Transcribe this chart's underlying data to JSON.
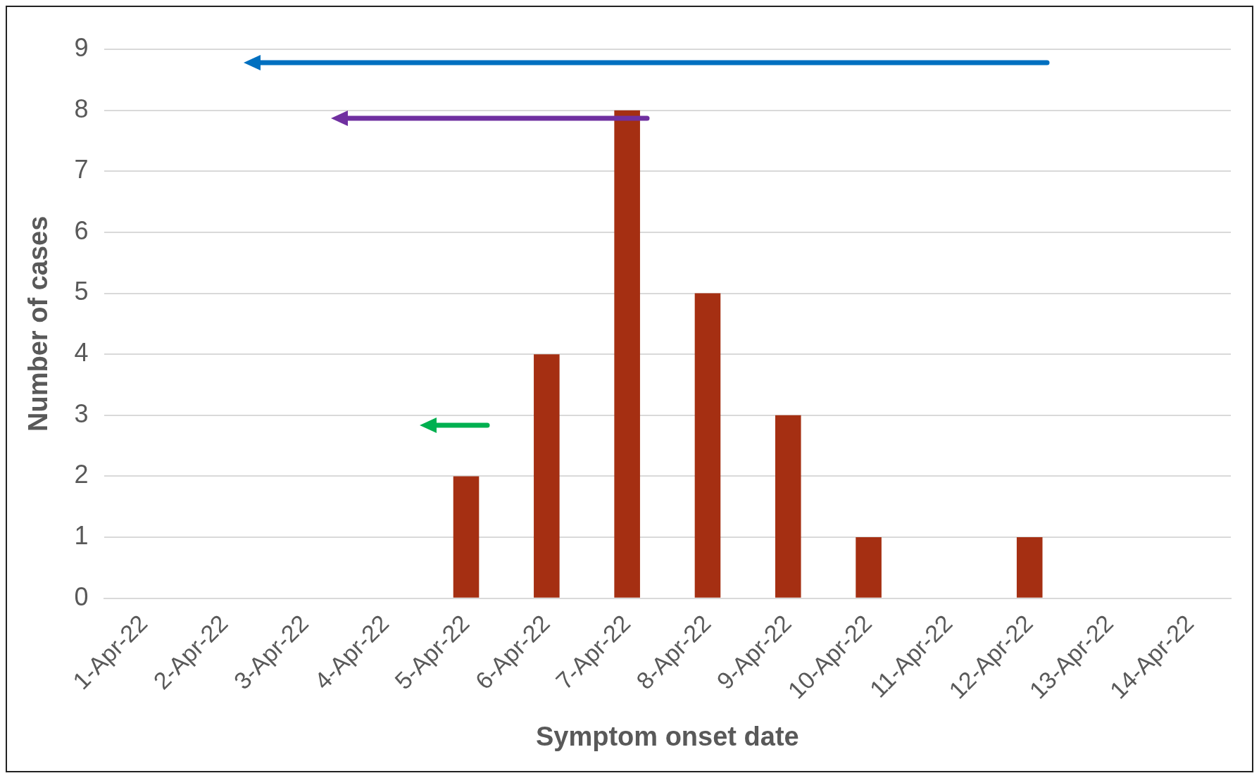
{
  "chart_data": {
    "type": "bar",
    "xlabel": "Symptom onset date",
    "ylabel": "Number of cases",
    "categories": [
      "1-Apr-22",
      "2-Apr-22",
      "3-Apr-22",
      "4-Apr-22",
      "5-Apr-22",
      "6-Apr-22",
      "7-Apr-22",
      "8-Apr-22",
      "9-Apr-22",
      "10-Apr-22",
      "11-Apr-22",
      "12-Apr-22",
      "13-Apr-22",
      "14-Apr-22"
    ],
    "values": [
      0,
      0,
      0,
      0,
      2,
      4,
      8,
      5,
      3,
      1,
      0,
      1,
      0,
      0
    ],
    "color": "#a52f12",
    "ylim": [
      0,
      9
    ],
    "yticks": [
      0,
      1,
      2,
      3,
      4,
      5,
      6,
      7,
      8,
      9
    ],
    "grid": "y",
    "legend": false
  }
}
